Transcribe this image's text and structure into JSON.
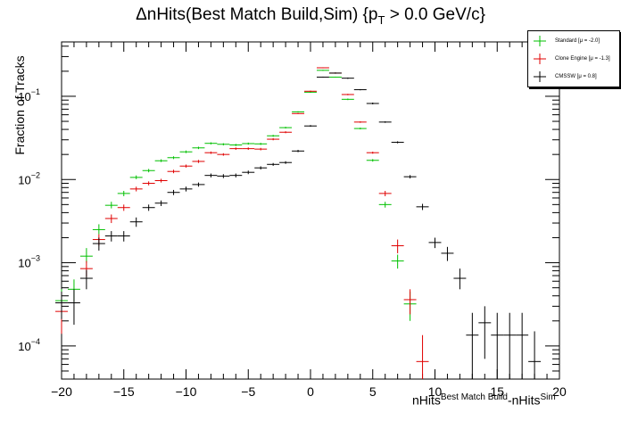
{
  "title_parts": {
    "main": "ΔnHits(Best Match Build,Sim) {p",
    "sub": "T",
    "tail": " > 0.0 GeV/c}"
  },
  "ylabel": "Fraction of Tracks",
  "xlabel_parts": {
    "base": "nHits",
    "sup1": "Best Match Build",
    "mid": "-nHits",
    "sup2": "Sim"
  },
  "chart_data": {
    "type": "scatter",
    "log_y": true,
    "xlim": [
      -20,
      20
    ],
    "ylim": [
      4e-05,
      0.45
    ],
    "x_ticks": [
      -20,
      -15,
      -10,
      -5,
      0,
      5,
      10,
      15,
      20
    ],
    "x_tick_labels": [
      "−20",
      "−15",
      "−10",
      "−5",
      "0",
      "5",
      "10",
      "15",
      "20"
    ],
    "y_ticks": [
      0.0001,
      0.001,
      0.01,
      0.1
    ],
    "y_tick_bases": [
      "10",
      "10",
      "10",
      "10"
    ],
    "y_tick_exps": [
      "−4",
      "−3",
      "−2",
      "−1"
    ],
    "legend_position": "top-right",
    "series": [
      {
        "name": "Standard",
        "legend_label": "Standard  [μ = -2.0]",
        "color": "#00c000",
        "points": [
          {
            "x": -20,
            "y": 0.00035,
            "lo": 0.00022,
            "hi": 0.00048
          },
          {
            "x": -19,
            "y": 0.00048,
            "lo": 0.00034,
            "hi": 0.00063
          },
          {
            "x": -18,
            "y": 0.0012,
            "lo": 0.001,
            "hi": 0.0015
          },
          {
            "x": -17,
            "y": 0.0025,
            "lo": 0.0022,
            "hi": 0.0029
          },
          {
            "x": -16,
            "y": 0.0049,
            "lo": 0.0045,
            "hi": 0.0054
          },
          {
            "x": -15,
            "y": 0.0068,
            "lo": 0.0063,
            "hi": 0.0073
          },
          {
            "x": -14,
            "y": 0.0106,
            "lo": 0.0101,
            "hi": 0.0112
          },
          {
            "x": -13,
            "y": 0.0128,
            "lo": 0.0122,
            "hi": 0.0134
          },
          {
            "x": -12,
            "y": 0.0168,
            "lo": 0.0162,
            "hi": 0.0175
          },
          {
            "x": -11,
            "y": 0.0183,
            "lo": 0.0176,
            "hi": 0.019
          },
          {
            "x": -10,
            "y": 0.0215,
            "lo": 0.0208,
            "hi": 0.0223
          },
          {
            "x": -9,
            "y": 0.024,
            "lo": 0.0232,
            "hi": 0.0248
          },
          {
            "x": -8,
            "y": 0.0272,
            "lo": 0.0264,
            "hi": 0.028
          },
          {
            "x": -7,
            "y": 0.0265,
            "lo": 0.0257,
            "hi": 0.0273
          },
          {
            "x": -6,
            "y": 0.026,
            "lo": 0.0252,
            "hi": 0.0268
          },
          {
            "x": -5,
            "y": 0.027,
            "lo": 0.0262,
            "hi": 0.0278
          },
          {
            "x": -4,
            "y": 0.0268,
            "lo": 0.026,
            "hi": 0.0276
          },
          {
            "x": -3,
            "y": 0.0335,
            "lo": 0.0326,
            "hi": 0.0344
          },
          {
            "x": -2,
            "y": 0.042,
            "lo": 0.041,
            "hi": 0.043
          },
          {
            "x": -1,
            "y": 0.065,
            "lo": 0.064,
            "hi": 0.066
          },
          {
            "x": 0,
            "y": 0.112,
            "lo": 0.11,
            "hi": 0.114
          },
          {
            "x": 1,
            "y": 0.205,
            "lo": 0.202,
            "hi": 0.208
          },
          {
            "x": 2,
            "y": 0.17,
            "lo": 0.168,
            "hi": 0.172
          },
          {
            "x": 3,
            "y": 0.092,
            "lo": 0.09,
            "hi": 0.094
          },
          {
            "x": 4,
            "y": 0.041,
            "lo": 0.04,
            "hi": 0.042
          },
          {
            "x": 5,
            "y": 0.017,
            "lo": 0.0164,
            "hi": 0.0176
          },
          {
            "x": 6,
            "y": 0.005,
            "lo": 0.0046,
            "hi": 0.0054
          },
          {
            "x": 7,
            "y": 0.00105,
            "lo": 0.00085,
            "hi": 0.00125
          },
          {
            "x": 8,
            "y": 0.00032,
            "lo": 0.0002,
            "hi": 0.00045
          }
        ]
      },
      {
        "name": "Clone Engine",
        "legend_label": "Clone Engine  [μ = -1.3]",
        "color": "#e00000",
        "points": [
          {
            "x": -20,
            "y": 0.00026,
            "lo": 0.00014,
            "hi": 0.00038
          },
          {
            "x": -18,
            "y": 0.00085,
            "lo": 0.00068,
            "hi": 0.00105
          },
          {
            "x": -17,
            "y": 0.0019,
            "lo": 0.0016,
            "hi": 0.0022
          },
          {
            "x": -16,
            "y": 0.0034,
            "lo": 0.003,
            "hi": 0.0038
          },
          {
            "x": -15,
            "y": 0.0046,
            "lo": 0.0042,
            "hi": 0.005
          },
          {
            "x": -14,
            "y": 0.0077,
            "lo": 0.0072,
            "hi": 0.0082
          },
          {
            "x": -13,
            "y": 0.009,
            "lo": 0.0085,
            "hi": 0.0095
          },
          {
            "x": -12,
            "y": 0.0097,
            "lo": 0.0092,
            "hi": 0.0102
          },
          {
            "x": -11,
            "y": 0.0125,
            "lo": 0.0119,
            "hi": 0.0131
          },
          {
            "x": -10,
            "y": 0.0145,
            "lo": 0.0139,
            "hi": 0.0151
          },
          {
            "x": -9,
            "y": 0.0165,
            "lo": 0.0158,
            "hi": 0.0172
          },
          {
            "x": -8,
            "y": 0.021,
            "lo": 0.0203,
            "hi": 0.0217
          },
          {
            "x": -7,
            "y": 0.02,
            "lo": 0.0193,
            "hi": 0.0207
          },
          {
            "x": -6,
            "y": 0.0235,
            "lo": 0.0227,
            "hi": 0.0243
          },
          {
            "x": -5,
            "y": 0.0235,
            "lo": 0.0227,
            "hi": 0.0243
          },
          {
            "x": -4,
            "y": 0.0232,
            "lo": 0.0224,
            "hi": 0.024
          },
          {
            "x": -3,
            "y": 0.0305,
            "lo": 0.0296,
            "hi": 0.0314
          },
          {
            "x": -2,
            "y": 0.037,
            "lo": 0.036,
            "hi": 0.038
          },
          {
            "x": -1,
            "y": 0.062,
            "lo": 0.061,
            "hi": 0.063
          },
          {
            "x": 0,
            "y": 0.115,
            "lo": 0.113,
            "hi": 0.117
          },
          {
            "x": 1,
            "y": 0.22,
            "lo": 0.217,
            "hi": 0.223
          },
          {
            "x": 2,
            "y": 0.19,
            "lo": 0.187,
            "hi": 0.193
          },
          {
            "x": 3,
            "y": 0.105,
            "lo": 0.103,
            "hi": 0.107
          },
          {
            "x": 4,
            "y": 0.049,
            "lo": 0.048,
            "hi": 0.05
          },
          {
            "x": 5,
            "y": 0.021,
            "lo": 0.0204,
            "hi": 0.0216
          },
          {
            "x": 6,
            "y": 0.0068,
            "lo": 0.0063,
            "hi": 0.0073
          },
          {
            "x": 7,
            "y": 0.0016,
            "lo": 0.0013,
            "hi": 0.0019
          },
          {
            "x": 8,
            "y": 0.00036,
            "lo": 0.00024,
            "hi": 0.00048
          },
          {
            "x": 9,
            "y": 6.5e-05,
            "lo": 4e-05,
            "hi": 0.000135
          }
        ]
      },
      {
        "name": "CMSSW",
        "legend_label": "CMSSW  [μ = 0.8]",
        "color": "#000000",
        "points": [
          {
            "x": -20,
            "y": 0.00033,
            "lo": 0.00021,
            "hi": 0.00045
          },
          {
            "x": -19,
            "y": 0.00033,
            "lo": 0.00018,
            "hi": 0.00048
          },
          {
            "x": -18,
            "y": 0.00065,
            "lo": 0.00048,
            "hi": 0.00082
          },
          {
            "x": -17,
            "y": 0.0017,
            "lo": 0.0014,
            "hi": 0.002
          },
          {
            "x": -16,
            "y": 0.0021,
            "lo": 0.0018,
            "hi": 0.0024
          },
          {
            "x": -15,
            "y": 0.0021,
            "lo": 0.0018,
            "hi": 0.0024
          },
          {
            "x": -14,
            "y": 0.0031,
            "lo": 0.0027,
            "hi": 0.0035
          },
          {
            "x": -13,
            "y": 0.0046,
            "lo": 0.0042,
            "hi": 0.005
          },
          {
            "x": -12,
            "y": 0.0052,
            "lo": 0.0048,
            "hi": 0.0056
          },
          {
            "x": -11,
            "y": 0.007,
            "lo": 0.0065,
            "hi": 0.0075
          },
          {
            "x": -10,
            "y": 0.0077,
            "lo": 0.0072,
            "hi": 0.0082
          },
          {
            "x": -9,
            "y": 0.0087,
            "lo": 0.0082,
            "hi": 0.0092
          },
          {
            "x": -8,
            "y": 0.0112,
            "lo": 0.0106,
            "hi": 0.0118
          },
          {
            "x": -7,
            "y": 0.011,
            "lo": 0.0104,
            "hi": 0.0116
          },
          {
            "x": -6,
            "y": 0.0112,
            "lo": 0.0106,
            "hi": 0.0118
          },
          {
            "x": -5,
            "y": 0.0122,
            "lo": 0.0116,
            "hi": 0.0128
          },
          {
            "x": -4,
            "y": 0.0138,
            "lo": 0.0132,
            "hi": 0.0144
          },
          {
            "x": -3,
            "y": 0.0152,
            "lo": 0.0146,
            "hi": 0.0158
          },
          {
            "x": -2,
            "y": 0.016,
            "lo": 0.0154,
            "hi": 0.0166
          },
          {
            "x": -1,
            "y": 0.022,
            "lo": 0.0213,
            "hi": 0.0227
          },
          {
            "x": 0,
            "y": 0.044,
            "lo": 0.043,
            "hi": 0.045
          },
          {
            "x": 1,
            "y": 0.17,
            "lo": 0.168,
            "hi": 0.172
          },
          {
            "x": 2,
            "y": 0.19,
            "lo": 0.187,
            "hi": 0.193
          },
          {
            "x": 3,
            "y": 0.165,
            "lo": 0.162,
            "hi": 0.168
          },
          {
            "x": 4,
            "y": 0.12,
            "lo": 0.118,
            "hi": 0.122
          },
          {
            "x": 5,
            "y": 0.082,
            "lo": 0.08,
            "hi": 0.084
          },
          {
            "x": 6,
            "y": 0.049,
            "lo": 0.048,
            "hi": 0.05
          },
          {
            "x": 7,
            "y": 0.028,
            "lo": 0.0272,
            "hi": 0.0288
          },
          {
            "x": 8,
            "y": 0.0108,
            "lo": 0.0103,
            "hi": 0.0113
          },
          {
            "x": 9,
            "y": 0.0047,
            "lo": 0.0043,
            "hi": 0.0051
          },
          {
            "x": 10,
            "y": 0.00175,
            "lo": 0.0015,
            "hi": 0.002
          },
          {
            "x": 11,
            "y": 0.0013,
            "lo": 0.00105,
            "hi": 0.00155
          },
          {
            "x": 12,
            "y": 0.00065,
            "lo": 0.00048,
            "hi": 0.00085
          },
          {
            "x": 13,
            "y": 0.000135,
            "lo": 4e-05,
            "hi": 0.00025
          },
          {
            "x": 14,
            "y": 0.00019,
            "lo": 7e-05,
            "hi": 0.0003
          },
          {
            "x": 15,
            "y": 0.000135,
            "lo": 4e-05,
            "hi": 0.00025
          },
          {
            "x": 16,
            "y": 0.000135,
            "lo": 4e-05,
            "hi": 0.00025
          },
          {
            "x": 17,
            "y": 0.000135,
            "lo": 4e-05,
            "hi": 0.00025
          },
          {
            "x": 18,
            "y": 6.5e-05,
            "lo": 4e-05,
            "hi": 0.00015
          }
        ]
      }
    ]
  }
}
